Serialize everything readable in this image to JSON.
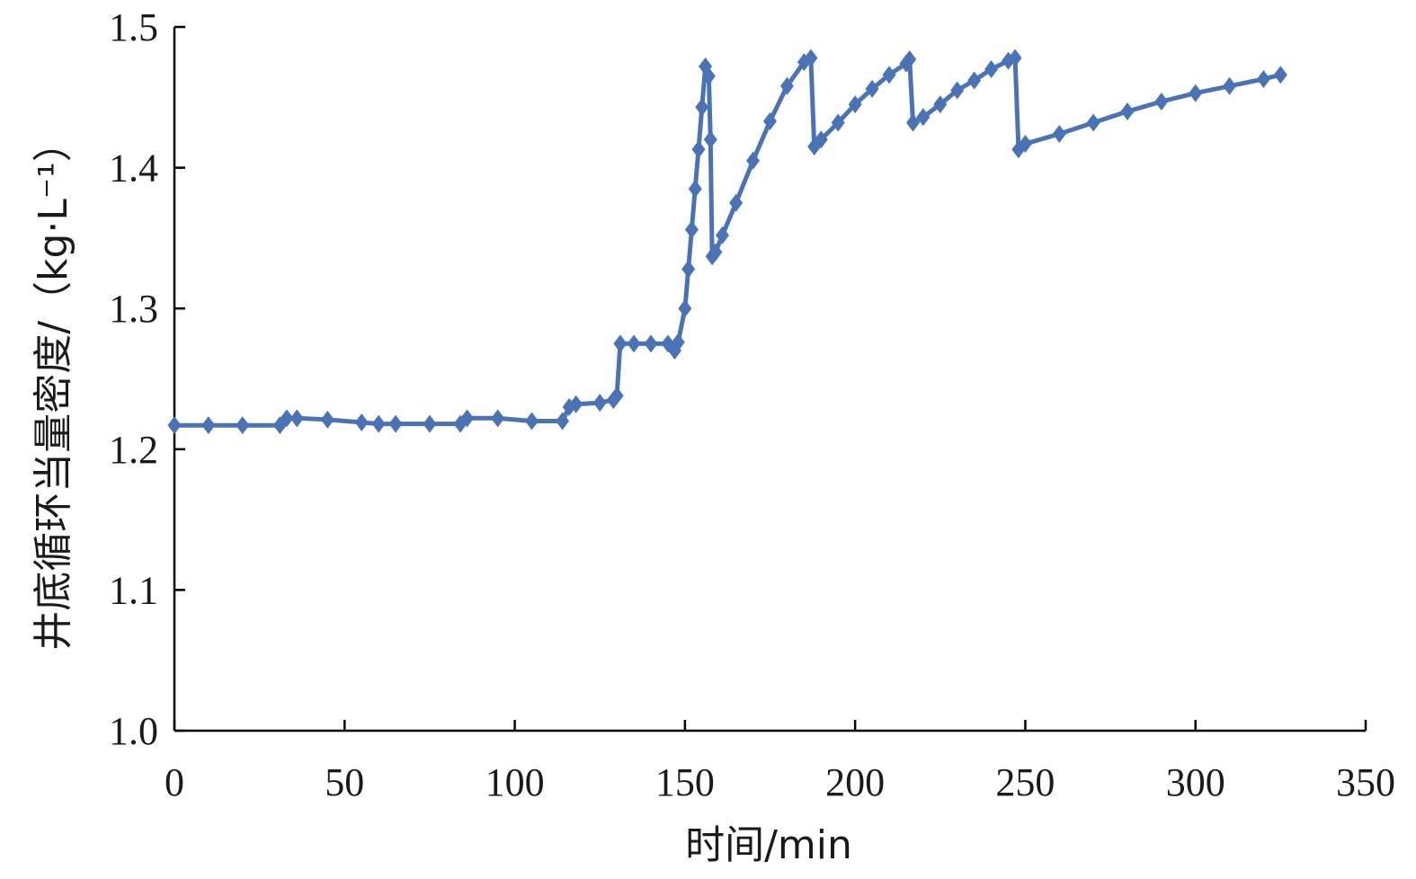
{
  "chart_data": {
    "type": "line",
    "title": "",
    "xlabel": "时间/min",
    "ylabel": "井底循环当量密度/（kg·L⁻¹）",
    "xlim": [
      0,
      350
    ],
    "ylim": [
      1.0,
      1.5
    ],
    "x_ticks": [
      "0",
      "50",
      "100",
      "150",
      "200",
      "250",
      "300",
      "350"
    ],
    "y_ticks": [
      "1.0",
      "1.1",
      "1.2",
      "1.3",
      "1.4",
      "1.5"
    ],
    "grid": false,
    "legend": "none",
    "color": "#4a73b5",
    "marker": "diamond",
    "series": [
      {
        "x": [
          0,
          10,
          20,
          31,
          33,
          36,
          45,
          55,
          60,
          65,
          75,
          84,
          86,
          95,
          105,
          114,
          116,
          118,
          125,
          129,
          130,
          131,
          135,
          140,
          145,
          147,
          148,
          150,
          151,
          152,
          153,
          154,
          155,
          156,
          157,
          157.5,
          158,
          159,
          161,
          165,
          170,
          175,
          180,
          185,
          187,
          188,
          190,
          195,
          200,
          205,
          210,
          215,
          216,
          217,
          220,
          225,
          230,
          235,
          240,
          245,
          247,
          248,
          250,
          260,
          270,
          280,
          290,
          300,
          310,
          320,
          325
        ],
        "y": [
          1.217,
          1.217,
          1.217,
          1.217,
          1.222,
          1.222,
          1.221,
          1.219,
          1.218,
          1.218,
          1.218,
          1.218,
          1.222,
          1.222,
          1.22,
          1.22,
          1.23,
          1.232,
          1.233,
          1.235,
          1.238,
          1.275,
          1.275,
          1.275,
          1.275,
          1.27,
          1.276,
          1.3,
          1.328,
          1.356,
          1.385,
          1.413,
          1.443,
          1.472,
          1.465,
          1.42,
          1.337,
          1.34,
          1.352,
          1.375,
          1.405,
          1.433,
          1.458,
          1.475,
          1.478,
          1.415,
          1.42,
          1.432,
          1.445,
          1.456,
          1.466,
          1.474,
          1.477,
          1.432,
          1.436,
          1.445,
          1.455,
          1.462,
          1.47,
          1.476,
          1.478,
          1.413,
          1.417,
          1.424,
          1.432,
          1.44,
          1.447,
          1.453,
          1.458,
          1.463,
          1.466
        ]
      }
    ]
  }
}
